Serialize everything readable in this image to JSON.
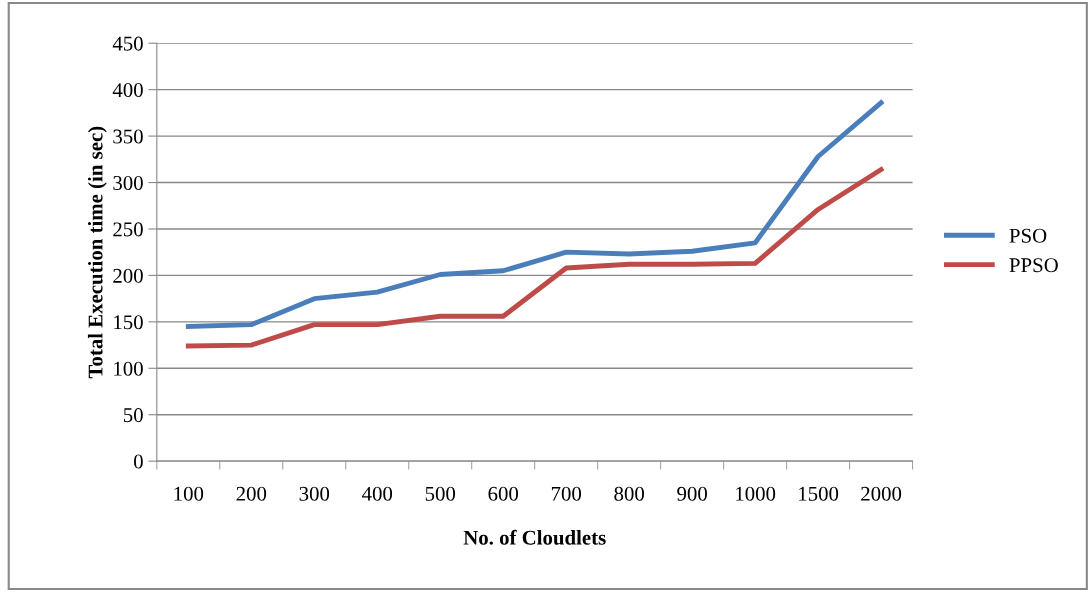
{
  "chart_data": {
    "type": "line",
    "xlabel": "No. of Cloudlets",
    "ylabel": "Total Execution time (in sec)",
    "categories": [
      "100",
      "200",
      "300",
      "400",
      "500",
      "600",
      "700",
      "800",
      "900",
      "1000",
      "1500",
      "2000"
    ],
    "series": [
      {
        "name": "PSO",
        "color": "#4a7ebb",
        "values": [
          145,
          147,
          175,
          182,
          201,
          205,
          225,
          223,
          226,
          235,
          328,
          386
        ]
      },
      {
        "name": "PPSO",
        "color": "#be4b48",
        "values": [
          124,
          125,
          147,
          147,
          156,
          156,
          208,
          212,
          212,
          213,
          271,
          314
        ]
      }
    ],
    "ylim": [
      0,
      450
    ],
    "yticks": [
      0,
      50,
      100,
      150,
      200,
      250,
      300,
      350,
      400,
      450
    ],
    "grid": "y",
    "legend": "right",
    "marker": "none",
    "line_style": "solid"
  }
}
